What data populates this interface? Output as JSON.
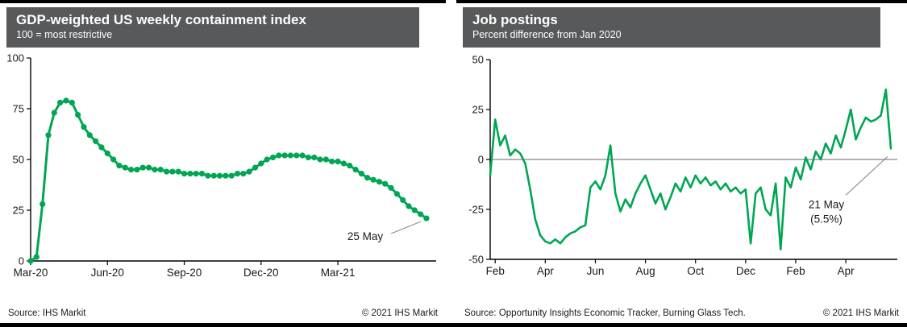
{
  "panels": [
    {
      "title": "GDP-weighted US weekly containment index",
      "subtitle": "100 = most restrictive",
      "source": "Source: IHS Markit",
      "copyright": "© 2021 IHS Markit"
    },
    {
      "title": "Job postings",
      "subtitle": "Percent difference from Jan 2020",
      "source": "Source: Opportunity Insights Economic Tracker, Burning Glass Tech.",
      "copyright": "© 2021 IHS Markit"
    }
  ],
  "colors": {
    "line": "#00A651",
    "header_bg": "#58595B",
    "header_text": "#FFFFFF",
    "axis": "#000000",
    "zero_line": "#999999",
    "tick_text": "#1a1a1a",
    "annotation": "#1a1a1a",
    "leader": "#808080"
  },
  "chart_data": [
    {
      "type": "line",
      "title": "GDP-weighted US weekly containment index",
      "subtitle": "100 = most restrictive",
      "xlabel": "",
      "ylabel": "",
      "ylim": [
        0,
        100
      ],
      "yticks": [
        0,
        25,
        50,
        75,
        100
      ],
      "grid": false,
      "zero_line": false,
      "legend": "none",
      "markers": true,
      "xtick_labels": [
        "Mar-20",
        "Jun-20",
        "Sep-20",
        "Dec-20",
        "Mar-21"
      ],
      "xtick_indices": [
        0,
        13,
        26,
        39,
        52
      ],
      "x_unit": "week",
      "values": [
        0,
        2,
        28,
        62,
        73,
        78,
        79,
        78,
        72,
        66,
        62,
        59,
        56,
        53,
        50,
        47,
        46,
        45,
        45,
        46,
        46,
        45,
        45,
        44,
        44,
        44,
        43,
        43,
        43,
        43,
        42,
        42,
        42,
        42,
        42,
        43,
        43,
        44,
        46,
        48,
        50,
        51,
        52,
        52,
        52,
        52,
        52,
        51,
        51,
        50,
        50,
        49,
        49,
        48,
        47,
        45,
        43,
        41,
        40,
        39,
        38,
        36,
        33,
        30,
        27,
        25,
        23,
        21
      ],
      "annotation": {
        "lines": [
          "25 May"
        ],
        "point": "last",
        "last_value": 21
      }
    },
    {
      "type": "line",
      "title": "Job postings",
      "subtitle": "Percent difference from Jan 2020",
      "xlabel": "",
      "ylabel": "",
      "ylim": [
        -50,
        50
      ],
      "yticks": [
        -50,
        -25,
        0,
        25,
        50
      ],
      "grid": false,
      "zero_line": true,
      "legend": "none",
      "markers": false,
      "xtick_labels": [
        "Feb",
        "Apr",
        "Jun",
        "Aug",
        "Oct",
        "Dec",
        "Feb",
        "Apr"
      ],
      "xtick_indices": [
        1,
        11,
        21,
        31,
        41,
        51,
        61,
        71
      ],
      "x_unit": "week",
      "values": [
        -8,
        20,
        7,
        12,
        2,
        5,
        3,
        -2,
        -15,
        -30,
        -38,
        -41,
        -42,
        -40,
        -42,
        -39,
        -37,
        -36,
        -34,
        -33,
        -14,
        -11,
        -15,
        -8,
        7,
        -17,
        -26,
        -20,
        -24,
        -17,
        -12,
        -8,
        -15,
        -22,
        -17,
        -25,
        -19,
        -12,
        -16,
        -9,
        -14,
        -8,
        -12,
        -9,
        -13,
        -11,
        -15,
        -12,
        -16,
        -14,
        -17,
        -15,
        -42,
        -17,
        -14,
        -25,
        -28,
        -12,
        -45,
        -9,
        -14,
        -4,
        -10,
        1,
        -5,
        4,
        0,
        8,
        3,
        12,
        6,
        15,
        25,
        10,
        16,
        21,
        19,
        20,
        22,
        35,
        5.5
      ],
      "annotation": {
        "lines": [
          "21 May",
          "(5.5%)"
        ],
        "point": "last",
        "last_value": 5.5
      }
    }
  ]
}
